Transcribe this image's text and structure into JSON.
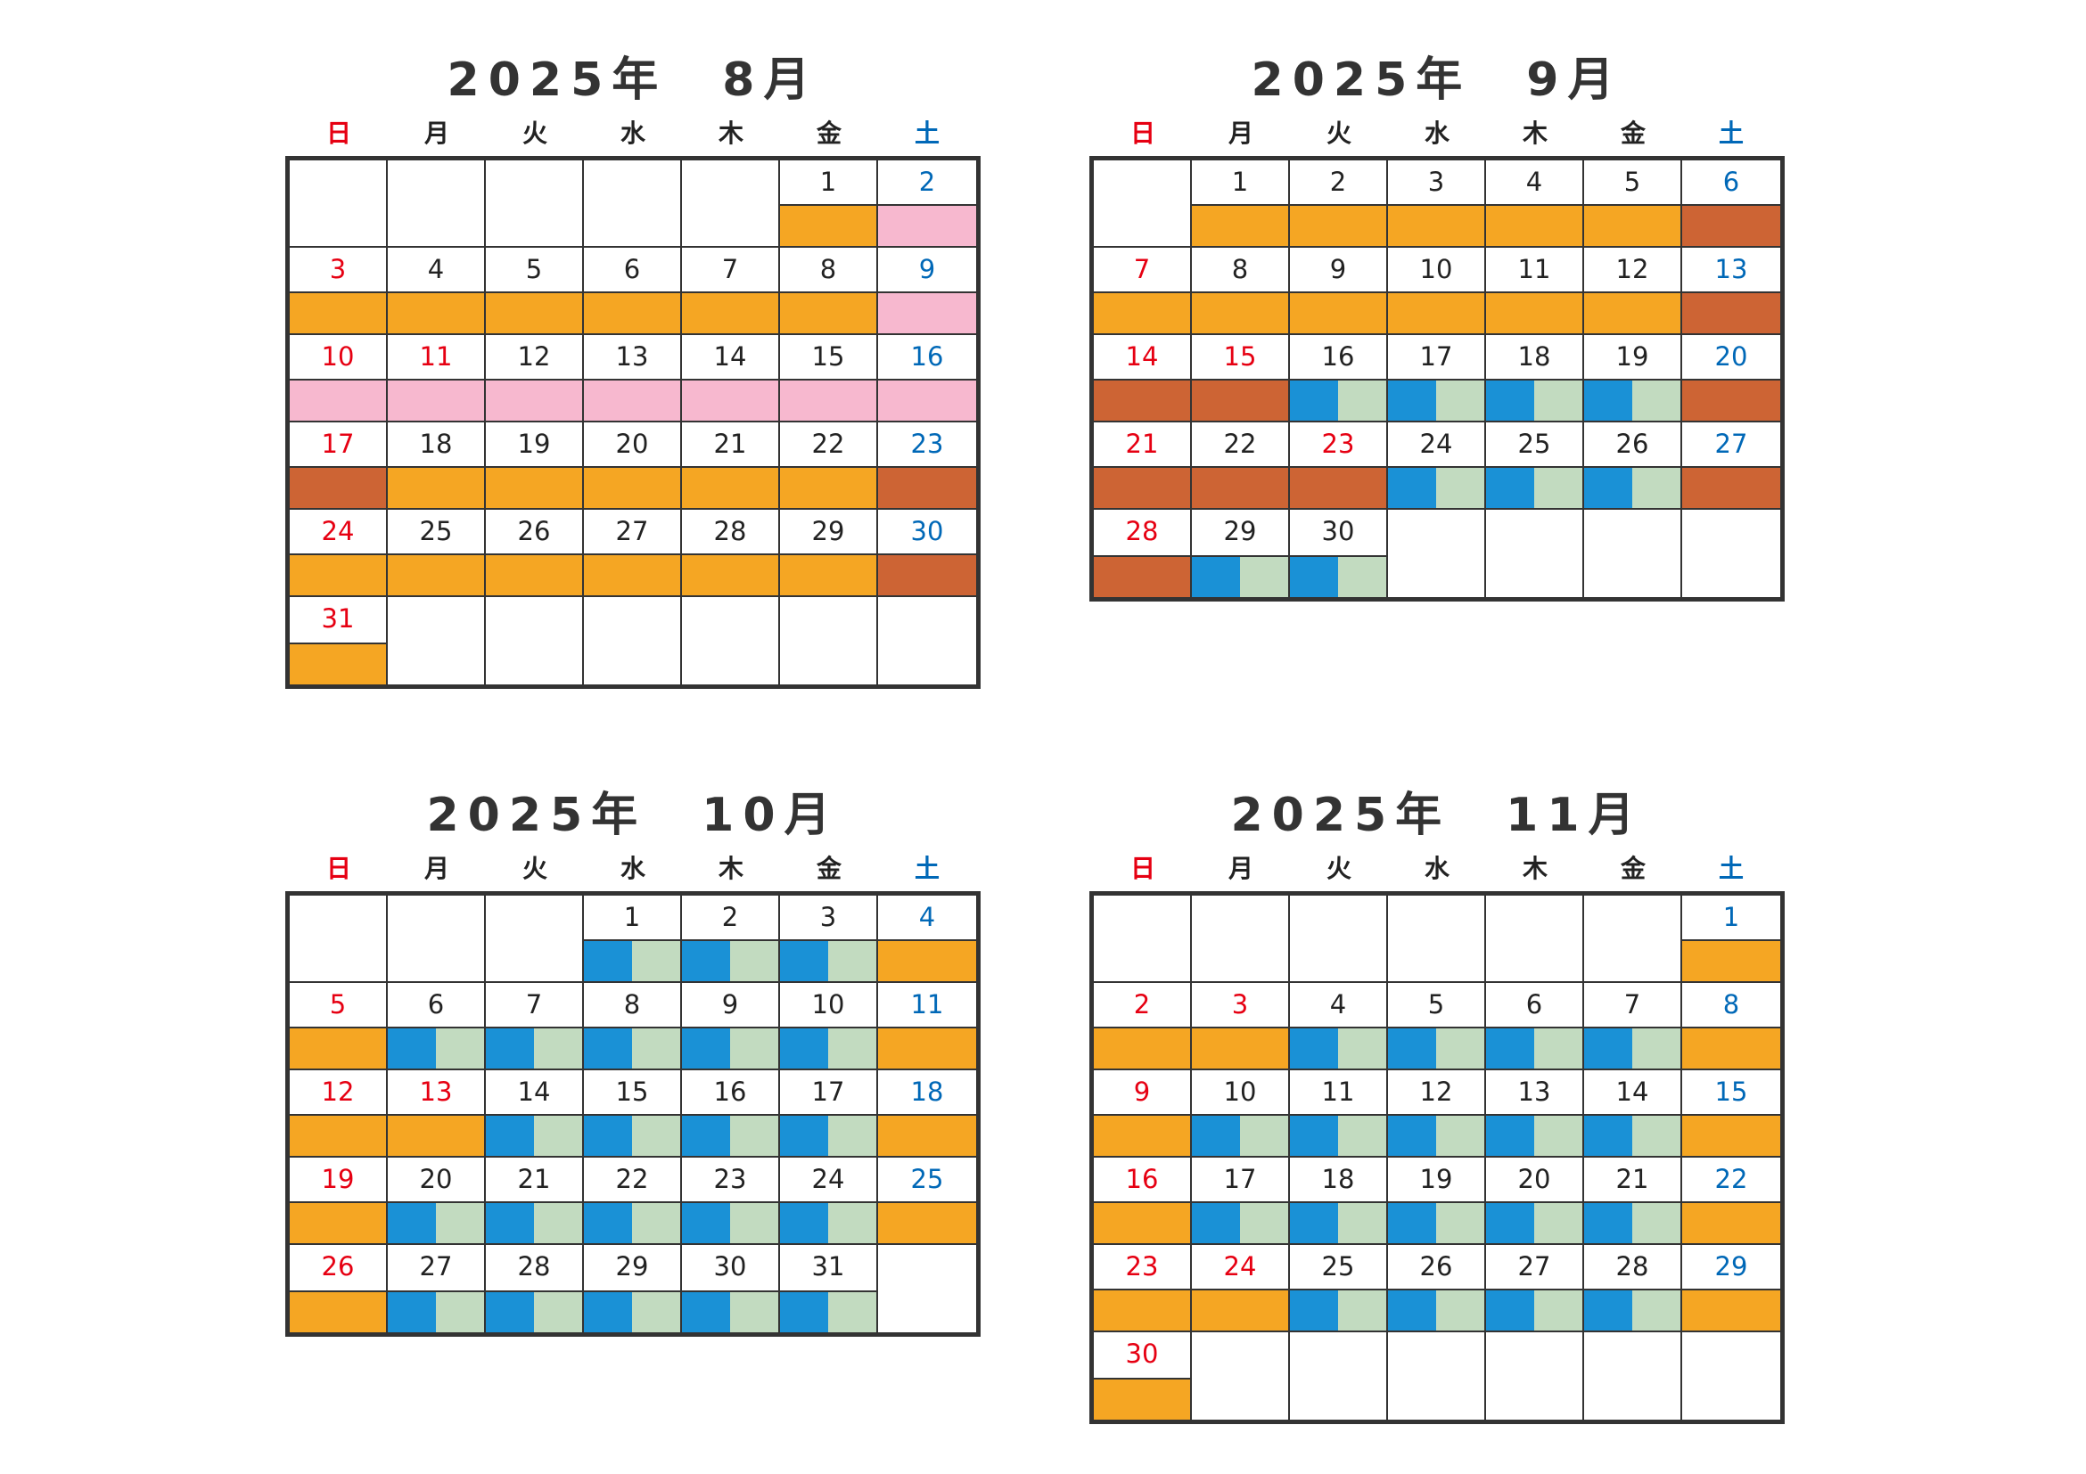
{
  "colors": {
    "orange": "#f5a623",
    "pink": "#f7b8cf",
    "brown": "#cd6434",
    "blue": "#1a91d6",
    "green": "#c2dbc0",
    "sunday_red": "#e60012",
    "saturday_blue": "#0068b7"
  },
  "weekdays": [
    "日",
    "月",
    "火",
    "水",
    "木",
    "金",
    "土"
  ],
  "months": [
    {
      "title": "2025年　8月",
      "weeks": [
        [
          null,
          null,
          null,
          null,
          null,
          {
            "d": "1",
            "bar": "orange"
          },
          {
            "d": "2",
            "bar": "pink"
          }
        ],
        [
          {
            "d": "3",
            "bar": "orange"
          },
          {
            "d": "4",
            "bar": "orange"
          },
          {
            "d": "5",
            "bar": "orange"
          },
          {
            "d": "6",
            "bar": "orange"
          },
          {
            "d": "7",
            "bar": "orange"
          },
          {
            "d": "8",
            "bar": "orange"
          },
          {
            "d": "9",
            "bar": "pink"
          }
        ],
        [
          {
            "d": "10",
            "bar": "pink"
          },
          {
            "d": "11",
            "bar": "pink",
            "hol": true
          },
          {
            "d": "12",
            "bar": "pink"
          },
          {
            "d": "13",
            "bar": "pink"
          },
          {
            "d": "14",
            "bar": "pink"
          },
          {
            "d": "15",
            "bar": "pink"
          },
          {
            "d": "16",
            "bar": "pink"
          }
        ],
        [
          {
            "d": "17",
            "bar": "brown"
          },
          {
            "d": "18",
            "bar": "orange"
          },
          {
            "d": "19",
            "bar": "orange"
          },
          {
            "d": "20",
            "bar": "orange"
          },
          {
            "d": "21",
            "bar": "orange"
          },
          {
            "d": "22",
            "bar": "orange"
          },
          {
            "d": "23",
            "bar": "brown"
          }
        ],
        [
          {
            "d": "24",
            "bar": "orange"
          },
          {
            "d": "25",
            "bar": "orange"
          },
          {
            "d": "26",
            "bar": "orange"
          },
          {
            "d": "27",
            "bar": "orange"
          },
          {
            "d": "28",
            "bar": "orange"
          },
          {
            "d": "29",
            "bar": "orange"
          },
          {
            "d": "30",
            "bar": "brown"
          }
        ],
        [
          {
            "d": "31",
            "bar": "orange"
          },
          null,
          null,
          null,
          null,
          null,
          null
        ]
      ]
    },
    {
      "title": "2025年　9月",
      "weeks": [
        [
          null,
          {
            "d": "1",
            "bar": "orange"
          },
          {
            "d": "2",
            "bar": "orange"
          },
          {
            "d": "3",
            "bar": "orange"
          },
          {
            "d": "4",
            "bar": "orange"
          },
          {
            "d": "5",
            "bar": "orange"
          },
          {
            "d": "6",
            "bar": "brown"
          }
        ],
        [
          {
            "d": "7",
            "bar": "orange"
          },
          {
            "d": "8",
            "bar": "orange"
          },
          {
            "d": "9",
            "bar": "orange"
          },
          {
            "d": "10",
            "bar": "orange"
          },
          {
            "d": "11",
            "bar": "orange"
          },
          {
            "d": "12",
            "bar": "orange"
          },
          {
            "d": "13",
            "bar": "brown"
          }
        ],
        [
          {
            "d": "14",
            "bar": "brown"
          },
          {
            "d": "15",
            "bar": "brown",
            "hol": true
          },
          {
            "d": "16",
            "bar": "split"
          },
          {
            "d": "17",
            "bar": "split"
          },
          {
            "d": "18",
            "bar": "split"
          },
          {
            "d": "19",
            "bar": "split"
          },
          {
            "d": "20",
            "bar": "brown"
          }
        ],
        [
          {
            "d": "21",
            "bar": "brown"
          },
          {
            "d": "22",
            "bar": "brown"
          },
          {
            "d": "23",
            "bar": "brown",
            "hol": true
          },
          {
            "d": "24",
            "bar": "split"
          },
          {
            "d": "25",
            "bar": "split"
          },
          {
            "d": "26",
            "bar": "split"
          },
          {
            "d": "27",
            "bar": "brown"
          }
        ],
        [
          {
            "d": "28",
            "bar": "brown"
          },
          {
            "d": "29",
            "bar": "split"
          },
          {
            "d": "30",
            "bar": "split"
          },
          null,
          null,
          null,
          null
        ]
      ]
    },
    {
      "title": "2025年　10月",
      "weeks": [
        [
          null,
          null,
          null,
          {
            "d": "1",
            "bar": "split"
          },
          {
            "d": "2",
            "bar": "split"
          },
          {
            "d": "3",
            "bar": "split"
          },
          {
            "d": "4",
            "bar": "orange"
          }
        ],
        [
          {
            "d": "5",
            "bar": "orange"
          },
          {
            "d": "6",
            "bar": "split"
          },
          {
            "d": "7",
            "bar": "split"
          },
          {
            "d": "8",
            "bar": "split"
          },
          {
            "d": "9",
            "bar": "split"
          },
          {
            "d": "10",
            "bar": "split"
          },
          {
            "d": "11",
            "bar": "orange"
          }
        ],
        [
          {
            "d": "12",
            "bar": "orange"
          },
          {
            "d": "13",
            "bar": "orange",
            "hol": true
          },
          {
            "d": "14",
            "bar": "split"
          },
          {
            "d": "15",
            "bar": "split"
          },
          {
            "d": "16",
            "bar": "split"
          },
          {
            "d": "17",
            "bar": "split"
          },
          {
            "d": "18",
            "bar": "orange"
          }
        ],
        [
          {
            "d": "19",
            "bar": "orange"
          },
          {
            "d": "20",
            "bar": "split"
          },
          {
            "d": "21",
            "bar": "split"
          },
          {
            "d": "22",
            "bar": "split"
          },
          {
            "d": "23",
            "bar": "split"
          },
          {
            "d": "24",
            "bar": "split"
          },
          {
            "d": "25",
            "bar": "orange"
          }
        ],
        [
          {
            "d": "26",
            "bar": "orange"
          },
          {
            "d": "27",
            "bar": "split"
          },
          {
            "d": "28",
            "bar": "split"
          },
          {
            "d": "29",
            "bar": "split"
          },
          {
            "d": "30",
            "bar": "split"
          },
          {
            "d": "31",
            "bar": "split"
          },
          null
        ]
      ]
    },
    {
      "title": "2025年　11月",
      "weeks": [
        [
          null,
          null,
          null,
          null,
          null,
          null,
          {
            "d": "1",
            "bar": "orange"
          }
        ],
        [
          {
            "d": "2",
            "bar": "orange"
          },
          {
            "d": "3",
            "bar": "orange",
            "hol": true
          },
          {
            "d": "4",
            "bar": "split"
          },
          {
            "d": "5",
            "bar": "split"
          },
          {
            "d": "6",
            "bar": "split"
          },
          {
            "d": "7",
            "bar": "split"
          },
          {
            "d": "8",
            "bar": "orange"
          }
        ],
        [
          {
            "d": "9",
            "bar": "orange"
          },
          {
            "d": "10",
            "bar": "split"
          },
          {
            "d": "11",
            "bar": "split"
          },
          {
            "d": "12",
            "bar": "split"
          },
          {
            "d": "13",
            "bar": "split"
          },
          {
            "d": "14",
            "bar": "split"
          },
          {
            "d": "15",
            "bar": "orange"
          }
        ],
        [
          {
            "d": "16",
            "bar": "orange"
          },
          {
            "d": "17",
            "bar": "split"
          },
          {
            "d": "18",
            "bar": "split"
          },
          {
            "d": "19",
            "bar": "split"
          },
          {
            "d": "20",
            "bar": "split"
          },
          {
            "d": "21",
            "bar": "split"
          },
          {
            "d": "22",
            "bar": "orange"
          }
        ],
        [
          {
            "d": "23",
            "bar": "orange"
          },
          {
            "d": "24",
            "bar": "orange",
            "hol": true
          },
          {
            "d": "25",
            "bar": "split"
          },
          {
            "d": "26",
            "bar": "split"
          },
          {
            "d": "27",
            "bar": "split"
          },
          {
            "d": "28",
            "bar": "split"
          },
          {
            "d": "29",
            "bar": "orange"
          }
        ],
        [
          {
            "d": "30",
            "bar": "orange"
          },
          null,
          null,
          null,
          null,
          null,
          null
        ]
      ]
    }
  ]
}
